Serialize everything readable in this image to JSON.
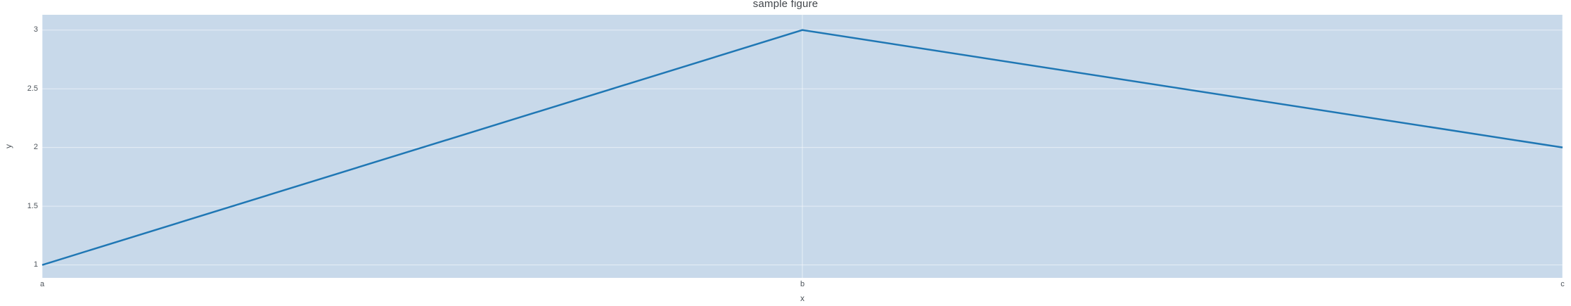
{
  "figure": {
    "title": "sample figure"
  },
  "chart_data": {
    "type": "line",
    "title": "sample figure",
    "xlabel": "x",
    "ylabel": "y",
    "categories": [
      "a",
      "b",
      "c"
    ],
    "series": [
      {
        "name": "y",
        "values": [
          1,
          3,
          2
        ]
      }
    ],
    "yticks": [
      1,
      1.5,
      2,
      2.5,
      3
    ],
    "ytick_labels": [
      "1",
      "1.5",
      "2",
      "2.5",
      "3"
    ],
    "ylim": [
      0.89,
      3.13
    ],
    "grid": true,
    "legend": false,
    "colors": {
      "line": "#1f77b4",
      "plot_bg": "#c8d9ea",
      "gridline": "rgba(255,255,255,0.55)",
      "title_text": "#42464b",
      "tick_text": "#4f565c"
    }
  }
}
